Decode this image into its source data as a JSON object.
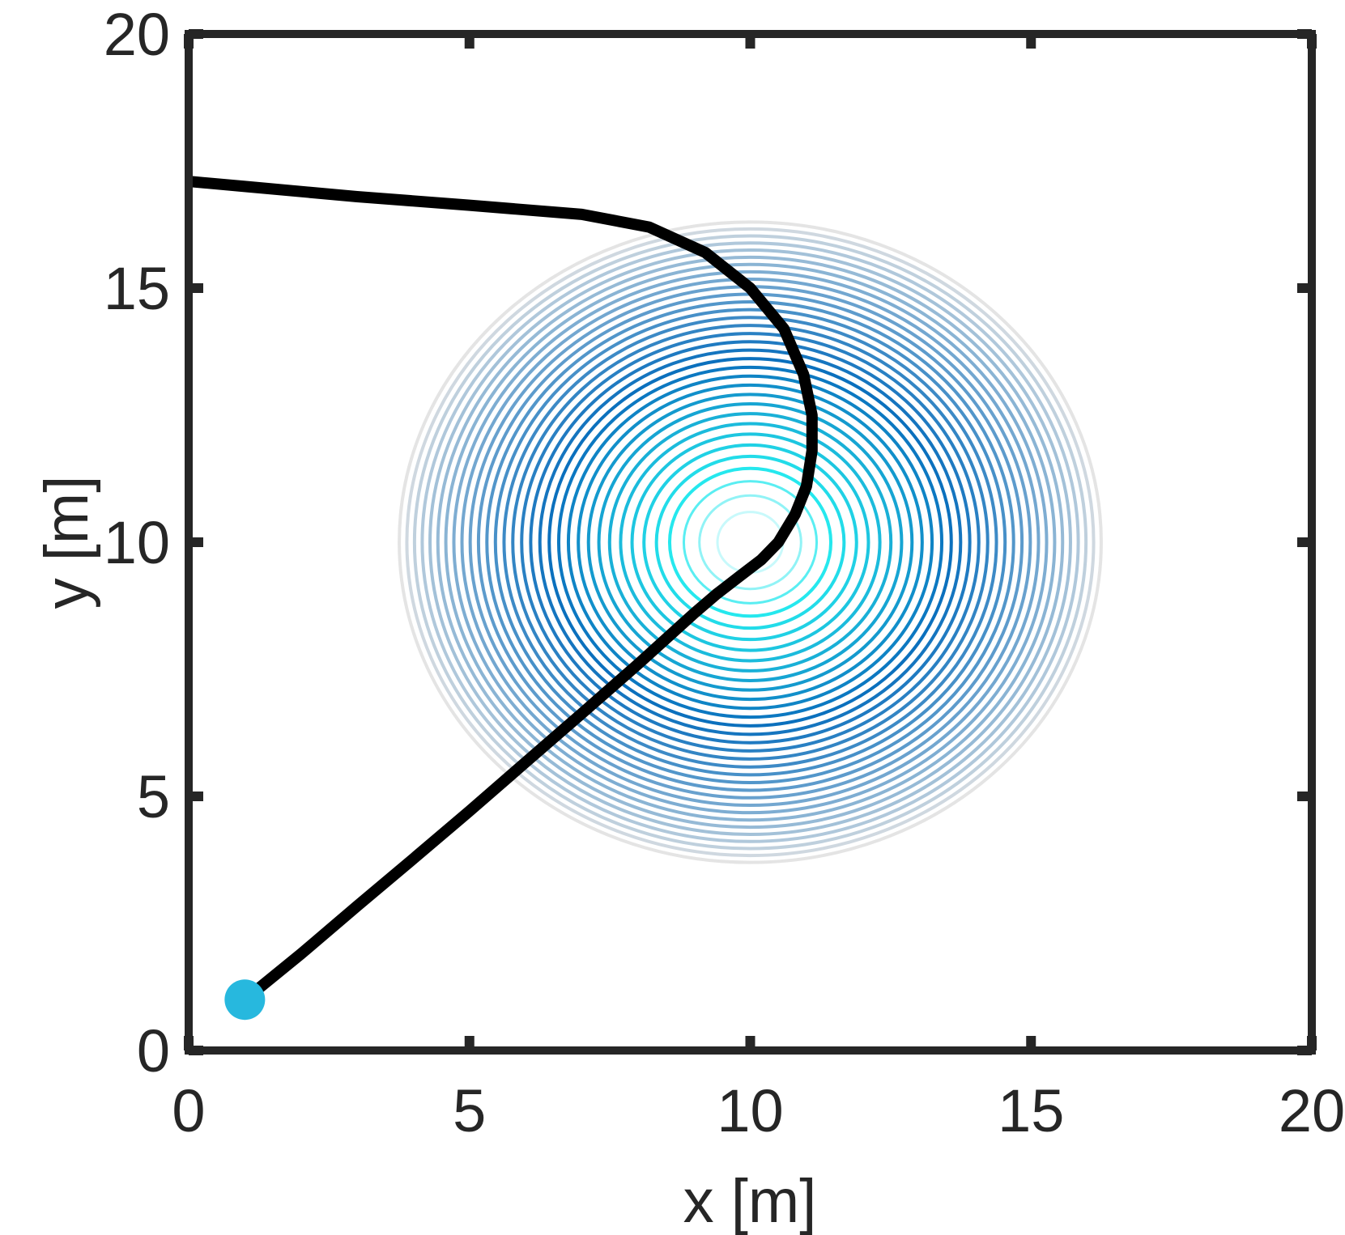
{
  "chart_data": {
    "type": "line",
    "xlabel": "x [m]",
    "ylabel": "y [m]",
    "xlim": [
      0,
      20
    ],
    "ylim": [
      0,
      20
    ],
    "x_ticks": [
      "0",
      "5",
      "10",
      "15",
      "20"
    ],
    "y_ticks": [
      "0",
      "5",
      "10",
      "15",
      "20"
    ],
    "grid": false,
    "legend": "none",
    "contour": {
      "center": [
        10,
        10
      ],
      "radius_x_outer": 6.25,
      "radius_y_outer": 6.3,
      "levels": 34,
      "colors": {
        "outer": "#e4e4e4",
        "mid": "#0a6fbd",
        "core": "#25e8ee",
        "center": "#ffffff"
      }
    },
    "series": [
      {
        "color": "#000000",
        "points": [
          [
            1.0,
            1.0
          ],
          [
            2.0,
            1.9
          ],
          [
            3.0,
            2.84
          ],
          [
            4.0,
            3.77
          ],
          [
            5.0,
            4.71
          ],
          [
            6.0,
            5.67
          ],
          [
            7.0,
            6.63
          ],
          [
            8.0,
            7.6
          ],
          [
            9.0,
            8.6
          ],
          [
            9.4,
            8.98
          ],
          [
            9.8,
            9.32
          ],
          [
            10.2,
            9.66
          ],
          [
            10.5,
            10.0
          ],
          [
            10.8,
            10.55
          ],
          [
            11.0,
            11.1
          ],
          [
            11.1,
            11.8
          ],
          [
            11.1,
            12.5
          ],
          [
            10.95,
            13.3
          ],
          [
            10.6,
            14.2
          ],
          [
            10.0,
            15.0
          ],
          [
            9.2,
            15.7
          ],
          [
            8.2,
            16.2
          ],
          [
            7.0,
            16.45
          ],
          [
            5.0,
            16.63
          ],
          [
            3.0,
            16.8
          ],
          [
            1.0,
            17.0
          ],
          [
            0.0,
            17.1
          ]
        ]
      }
    ],
    "start_marker": {
      "x": 1.0,
      "y": 1.0,
      "color": "#27b8de"
    }
  }
}
